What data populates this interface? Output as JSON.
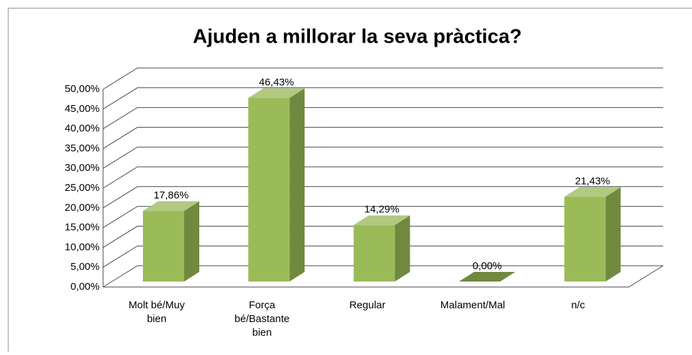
{
  "chart_data": {
    "type": "bar3d",
    "title": "Ajuden a millorar la seva pràctica?",
    "categories": [
      "Molt bé/Muy bien",
      "Força bé/Bastante bien",
      "Regular",
      "Malament/Mal",
      "n/c"
    ],
    "values": [
      17.86,
      46.43,
      14.29,
      0,
      21.43
    ],
    "value_labels": [
      "17,86%",
      "46,43%",
      "14,29%",
      "0,00%",
      "21,43%"
    ],
    "color": "#9bbb59",
    "ylim": [
      0,
      50
    ],
    "yticks": [
      {
        "value": 0,
        "label": "0,00%"
      },
      {
        "value": 5,
        "label": "5,00%"
      },
      {
        "value": 10,
        "label": "10,00%"
      },
      {
        "value": 15,
        "label": "15,00%"
      },
      {
        "value": 20,
        "label": "20,00%"
      },
      {
        "value": 25,
        "label": "25,00%"
      },
      {
        "value": 30,
        "label": "30,00%"
      },
      {
        "value": 35,
        "label": "35,00%"
      },
      {
        "value": 40,
        "label": "40,00%"
      },
      {
        "value": 45,
        "label": "45,00%"
      },
      {
        "value": 50,
        "label": "50,00%"
      }
    ],
    "grid": true
  }
}
